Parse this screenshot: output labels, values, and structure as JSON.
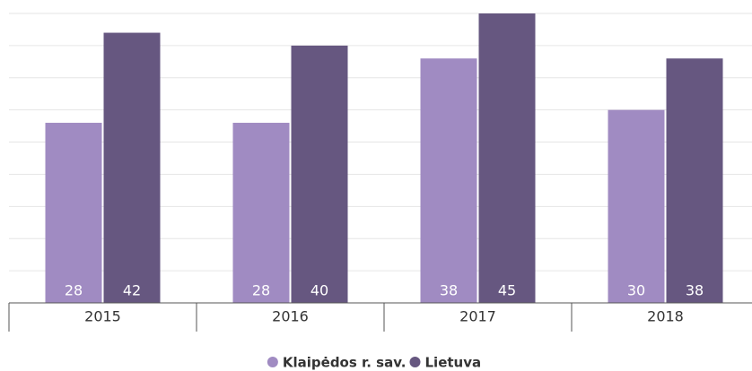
{
  "chart_data": {
    "type": "bar",
    "categories": [
      "2015",
      "2016",
      "2017",
      "2018"
    ],
    "series": [
      {
        "name": "Klaipėdos r. sav.",
        "color": "#a08bc2",
        "values": [
          28,
          28,
          38,
          30
        ]
      },
      {
        "name": "Lietuva",
        "color": "#665780",
        "values": [
          42,
          40,
          45,
          38
        ]
      }
    ],
    "ylim": [
      0,
      45
    ],
    "yticks": [
      0,
      5,
      10,
      15,
      20,
      25,
      30,
      35,
      40,
      45
    ],
    "grid": true,
    "legend": "bottom"
  }
}
